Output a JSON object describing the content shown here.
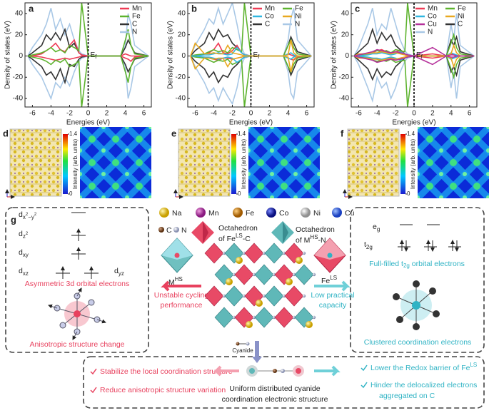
{
  "chart_data": [
    {
      "type": "line",
      "panel": "a",
      "xlabel": "Energies (eV)",
      "ylabel": "Density of states (eV)",
      "fermi_label": {
        "main": "E",
        "sub": "f"
      },
      "xlim": [
        -6.8,
        6.8
      ],
      "ylim": [
        -48,
        50
      ],
      "xticks": [
        -6,
        -4,
        -2,
        0,
        2,
        4,
        6
      ],
      "yticks": [
        -40,
        -20,
        0,
        20,
        40
      ],
      "legend_columns": 1,
      "x": [
        -6.5,
        -6,
        -5,
        -4.5,
        -4,
        -3.5,
        -3,
        -2.5,
        -2,
        -1.5,
        -1,
        -0.7,
        0,
        2,
        3.5,
        4,
        4.3,
        4.6,
        5,
        6.5
      ],
      "series": [
        {
          "name": "N",
          "color": "#a9c8e6",
          "values": [
            0,
            8,
            20,
            30,
            45,
            25,
            35,
            20,
            30,
            15,
            5,
            2,
            0,
            0,
            0,
            10,
            40,
            30,
            10,
            0
          ],
          "values_down": [
            0,
            -8,
            -20,
            -30,
            -40,
            -25,
            -30,
            -20,
            -28,
            -15,
            -5,
            -2,
            0,
            0,
            0,
            -10,
            -40,
            -30,
            -10,
            0
          ]
        },
        {
          "name": "C",
          "color": "#333333",
          "values": [
            0,
            3,
            10,
            20,
            15,
            22,
            15,
            25,
            8,
            12,
            3,
            1,
            0,
            0,
            0,
            8,
            15,
            10,
            3,
            0
          ],
          "values_down": [
            0,
            -3,
            -10,
            -18,
            -15,
            -22,
            -12,
            -25,
            -8,
            -10,
            -3,
            -1,
            0,
            0,
            0,
            -8,
            -15,
            -10,
            -3,
            0
          ]
        },
        {
          "name": "Mn",
          "color": "#ee3b55",
          "values": [
            0,
            0,
            2,
            5,
            8,
            12,
            6,
            4,
            10,
            15,
            3,
            1,
            0,
            0,
            0,
            2,
            1,
            0,
            0,
            0
          ],
          "values_down": [
            0,
            0,
            -1,
            -2,
            -3,
            -4,
            -3,
            -2,
            -3,
            -2,
            -1,
            0,
            0,
            0,
            0,
            -2,
            -3,
            -5,
            -1,
            0
          ]
        },
        {
          "name": "Fe",
          "color": "#5db32e",
          "values": [
            0,
            1,
            3,
            5,
            8,
            4,
            6,
            3,
            10,
            8,
            5,
            50,
            0,
            0,
            0,
            15,
            25,
            10,
            2,
            0
          ],
          "values_down": [
            0,
            -1,
            -3,
            -5,
            -8,
            -4,
            -6,
            -3,
            -10,
            -8,
            -5,
            -48,
            0,
            0,
            0,
            -15,
            -25,
            -10,
            -2,
            0
          ]
        }
      ]
    },
    {
      "type": "line",
      "panel": "b",
      "xlabel": "Energies (eV)",
      "ylabel": "Density of states (eV)",
      "fermi_label": {
        "main": "E",
        "sub": "f"
      },
      "xlim": [
        -6.8,
        6.8
      ],
      "ylim": [
        -48,
        50
      ],
      "xticks": [
        -6,
        -4,
        -2,
        0,
        2,
        4,
        6
      ],
      "yticks": [
        -40,
        -20,
        0,
        20,
        40
      ],
      "legend_columns": 2,
      "x": [
        -6.5,
        -6,
        -5,
        -4.5,
        -4,
        -3.5,
        -3,
        -2.5,
        -2,
        -1.5,
        -1,
        -0.7,
        0,
        2,
        3.5,
        4,
        4.3,
        4.6,
        5,
        6.5
      ],
      "series": [
        {
          "name": "N",
          "color": "#a9c8e6",
          "values": [
            0,
            10,
            25,
            35,
            30,
            45,
            30,
            40,
            50,
            30,
            8,
            2,
            0,
            0,
            0,
            15,
            35,
            45,
            15,
            0
          ],
          "values_down": [
            0,
            -10,
            -25,
            -35,
            -30,
            -42,
            -30,
            -38,
            -45,
            -30,
            -8,
            -2,
            0,
            0,
            0,
            -15,
            -35,
            -40,
            -15,
            0
          ]
        },
        {
          "name": "C",
          "color": "#333333",
          "values": [
            0,
            5,
            12,
            22,
            15,
            25,
            18,
            20,
            12,
            8,
            3,
            1,
            0,
            0,
            0,
            10,
            18,
            12,
            4,
            0
          ],
          "values_down": [
            0,
            -5,
            -12,
            -20,
            -15,
            -25,
            -18,
            -20,
            -12,
            -8,
            -3,
            -1,
            0,
            0,
            0,
            -10,
            -18,
            -12,
            -4,
            0
          ]
        },
        {
          "name": "Mn",
          "color": "#ee3b55",
          "values": [
            0,
            0,
            2,
            3,
            6,
            12,
            3,
            2,
            5,
            10,
            3,
            1,
            0,
            0,
            0,
            2,
            1,
            0,
            0,
            0
          ],
          "values_down": [
            0,
            0,
            -1,
            -2,
            -3,
            -4,
            -2,
            -2,
            -3,
            -2,
            -1,
            0,
            0,
            0,
            0,
            -2,
            -3,
            -4,
            -1,
            0
          ]
        },
        {
          "name": "Fe",
          "color": "#5db32e",
          "values": [
            0,
            1,
            2,
            4,
            6,
            4,
            5,
            3,
            8,
            6,
            4,
            50,
            0,
            0,
            0,
            10,
            15,
            8,
            2,
            0
          ],
          "values_down": [
            0,
            -1,
            -2,
            -4,
            -6,
            -4,
            -5,
            -3,
            -8,
            -6,
            -4,
            -48,
            0,
            0,
            0,
            -10,
            -15,
            -8,
            -2,
            0
          ]
        },
        {
          "name": "Co",
          "color": "#2fb6e0",
          "values": [
            0,
            0,
            1,
            1,
            2,
            3,
            2,
            1,
            2,
            8,
            3,
            1,
            0,
            0,
            0,
            2,
            3,
            1,
            0,
            0
          ],
          "values_down": [
            0,
            0,
            -1,
            -1,
            -2,
            -3,
            -2,
            -1,
            -2,
            -6,
            -3,
            -1,
            0,
            0,
            0,
            -2,
            -3,
            -1,
            0,
            0
          ]
        },
        {
          "name": "Ni",
          "color": "#e8a820",
          "values": [
            0,
            12,
            2,
            2,
            3,
            2,
            2,
            10,
            3,
            2,
            1,
            0,
            0,
            0,
            0,
            1,
            15,
            3,
            0,
            0
          ],
          "values_down": [
            0,
            -12,
            -2,
            -2,
            -3,
            -2,
            -2,
            -10,
            -3,
            -2,
            -1,
            0,
            0,
            0,
            0,
            -1,
            -15,
            -3,
            0,
            0
          ]
        }
      ]
    },
    {
      "type": "line",
      "panel": "c",
      "xlabel": "Energies (eV)",
      "ylabel": "Density of states (eV)",
      "fermi_label": {
        "main": "E",
        "sub": "f"
      },
      "xlim": [
        -6.8,
        6.8
      ],
      "ylim": [
        -48,
        50
      ],
      "xticks": [
        -6,
        -4,
        -2,
        0,
        2,
        4,
        6
      ],
      "yticks": [
        -40,
        -20,
        0,
        20,
        40
      ],
      "legend_columns": 2,
      "x": [
        -6.5,
        -6,
        -5,
        -4.5,
        -4,
        -3.5,
        -3,
        -2.5,
        -2,
        -1.5,
        -1,
        -0.7,
        0,
        2,
        3.5,
        4,
        4.3,
        4.6,
        5,
        6.5
      ],
      "series": [
        {
          "name": "N",
          "color": "#a9c8e6",
          "values": [
            0,
            8,
            30,
            45,
            20,
            30,
            25,
            45,
            30,
            15,
            5,
            2,
            0,
            0,
            0,
            30,
            15,
            40,
            10,
            0
          ],
          "values_down": [
            0,
            -8,
            -30,
            -42,
            -20,
            -30,
            -25,
            -40,
            -30,
            -15,
            -5,
            -2,
            0,
            0,
            0,
            -30,
            -15,
            -40,
            -10,
            0
          ]
        },
        {
          "name": "C",
          "color": "#333333",
          "values": [
            0,
            4,
            12,
            25,
            12,
            22,
            15,
            20,
            10,
            6,
            2,
            1,
            0,
            0,
            0,
            15,
            10,
            18,
            4,
            0
          ],
          "values_down": [
            0,
            -4,
            -12,
            -22,
            -12,
            -20,
            -15,
            -18,
            -10,
            -6,
            -2,
            -1,
            0,
            0,
            0,
            -15,
            -10,
            -18,
            -4,
            0
          ]
        },
        {
          "name": "Mn",
          "color": "#ee3b55",
          "values": [
            0,
            0,
            2,
            3,
            5,
            6,
            4,
            3,
            4,
            5,
            2,
            1,
            0,
            2,
            0,
            2,
            1,
            0,
            0,
            0
          ],
          "values_down": [
            0,
            0,
            -2,
            -2,
            -3,
            -4,
            -3,
            -2,
            -3,
            -2,
            -1,
            0,
            0,
            -2,
            0,
            -2,
            -2,
            -1,
            0,
            0
          ]
        },
        {
          "name": "Fe",
          "color": "#5db32e",
          "values": [
            0,
            1,
            2,
            4,
            5,
            4,
            5,
            3,
            6,
            5,
            4,
            50,
            0,
            0,
            0,
            12,
            20,
            8,
            2,
            0
          ],
          "values_down": [
            0,
            -1,
            -2,
            -4,
            -5,
            -4,
            -5,
            -3,
            -6,
            -5,
            -4,
            -48,
            0,
            0,
            0,
            -12,
            -20,
            -8,
            -2,
            0
          ]
        },
        {
          "name": "Co",
          "color": "#2fb6e0",
          "values": [
            0,
            0,
            1,
            2,
            2,
            3,
            2,
            1,
            2,
            4,
            2,
            1,
            0,
            0,
            0,
            3,
            2,
            1,
            0,
            0
          ],
          "values_down": [
            0,
            0,
            -1,
            -2,
            -2,
            -3,
            -2,
            -1,
            -2,
            -4,
            -2,
            -1,
            0,
            0,
            0,
            -3,
            -2,
            -1,
            0,
            0
          ]
        },
        {
          "name": "Ni",
          "color": "#e8a820",
          "values": [
            0,
            2,
            2,
            3,
            3,
            4,
            3,
            2,
            3,
            2,
            1,
            0,
            0,
            0,
            0,
            2,
            10,
            3,
            0,
            0
          ],
          "values_down": [
            0,
            -2,
            -2,
            -3,
            -3,
            -4,
            -3,
            -2,
            -3,
            -2,
            -1,
            0,
            0,
            0,
            0,
            -2,
            -10,
            -3,
            0,
            0
          ]
        },
        {
          "name": "Cu",
          "color": "#b5309a",
          "values": [
            0,
            1,
            3,
            4,
            6,
            5,
            4,
            3,
            4,
            3,
            2,
            1,
            0,
            8,
            0,
            1,
            1,
            0,
            0,
            0
          ],
          "values_down": [
            0,
            -1,
            -3,
            -4,
            -6,
            -5,
            -4,
            -3,
            -4,
            -3,
            -2,
            -1,
            0,
            -8,
            0,
            -1,
            -1,
            0,
            0,
            0
          ]
        }
      ]
    }
  ],
  "maps": [
    {
      "panel": "d",
      "colorbar_label": "Intensity (arb. units)",
      "clim": [
        0,
        1.4
      ],
      "cticks": [
        0,
        1.4
      ]
    },
    {
      "panel": "e",
      "colorbar_label": "Intensity (arb. units)",
      "clim": [
        0,
        1.4
      ],
      "cticks": [
        0,
        1.4
      ]
    },
    {
      "panel": "f",
      "colorbar_label": "Intensity (arb. units)",
      "clim": [
        0,
        1.4
      ],
      "cticks": [
        0,
        1.4
      ]
    }
  ],
  "scheme": {
    "panel": "g",
    "orbitals": [
      [
        "d",
        "x",
        "2",
        "−y",
        "2"
      ],
      [
        "d",
        "z",
        "2"
      ],
      [
        "d",
        "xy"
      ],
      [
        "d",
        "xz"
      ],
      [
        "d",
        "yz"
      ]
    ],
    "left_caption": "Asymmetric 3d orbital electrons",
    "left_bottom": "Anisotropic structure change",
    "atoms": [
      "Na",
      "Mn",
      "Fe",
      "Co",
      "Ni",
      "Cu",
      "C",
      "N"
    ],
    "octa_fe": [
      "Octahedron",
      "of Fe",
      "LS",
      "-C"
    ],
    "octa_m": [
      "Octahedron",
      "of M",
      "HS",
      "-N"
    ],
    "m_hs": [
      "M",
      "HS"
    ],
    "fe_ls": [
      "Fe",
      "LS"
    ],
    "left_effect": [
      "Unstable cycling",
      "performance"
    ],
    "right_effect": [
      "Low practical",
      "capacity"
    ],
    "cyanide": "Cyanide",
    "eg": [
      "e",
      "g"
    ],
    "t2g": [
      "t",
      "2g"
    ],
    "right_caption": [
      "Full-filled t",
      "2g",
      " orbital electrons"
    ],
    "right_bottom": "Clustered coordination electrons",
    "bottom_left": [
      "Stabilize the local coordination structure",
      "Reduce anisotropic structure variation"
    ],
    "bottom_center": [
      "Uniform distributed cyanide",
      "coordination electronic structure"
    ],
    "bottom_right": [
      [
        "Lower the Redox barrier of Fe",
        "LS"
      ],
      [
        "Hinder the delocalized electrons",
        "aggregated on C"
      ]
    ]
  }
}
